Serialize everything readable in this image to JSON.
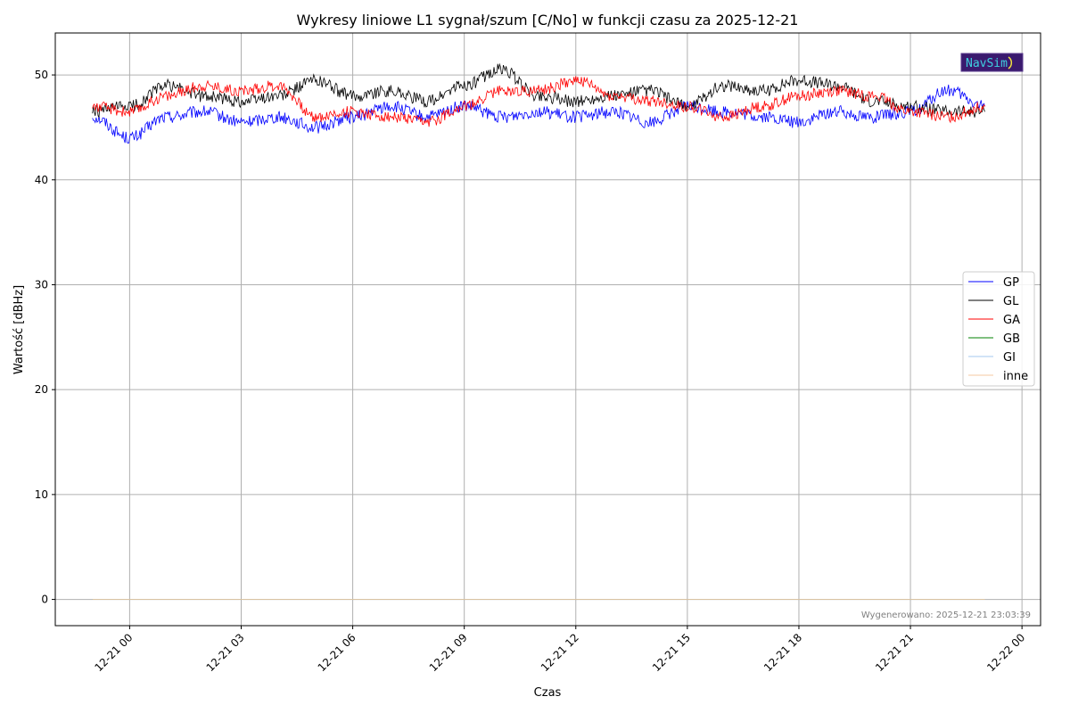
{
  "chart_data": {
    "type": "line",
    "title": "Wykresy liniowe L1 sygnał/szum [C/No] w funkcji czasu za 2025-12-21",
    "xlabel": "Czas",
    "ylabel": "Wartość [dBHz]",
    "x_axis": {
      "kind": "datetime",
      "range": [
        "2025-12-20 22:00",
        "2025-12-22 00:30"
      ],
      "tick_labels": [
        "12-21 00",
        "12-21 03",
        "12-21 06",
        "12-21 09",
        "12-21 12",
        "12-21 15",
        "12-21 18",
        "12-21 21",
        "12-22 00"
      ]
    },
    "ylim": [
      -2.5,
      54
    ],
    "y_ticks": [
      0,
      10,
      20,
      30,
      40,
      50
    ],
    "grid": true,
    "legend_position": "right",
    "series": [
      {
        "name": "GP",
        "color": "#0000ff",
        "x": [
          "2025-12-20 23:00",
          "2025-12-21 00:00",
          "2025-12-21 01:00",
          "2025-12-21 02:00",
          "2025-12-21 03:00",
          "2025-12-21 04:00",
          "2025-12-21 05:00",
          "2025-12-21 06:00",
          "2025-12-21 07:00",
          "2025-12-21 08:00",
          "2025-12-21 09:00",
          "2025-12-21 10:00",
          "2025-12-21 11:00",
          "2025-12-21 12:00",
          "2025-12-21 13:00",
          "2025-12-21 14:00",
          "2025-12-21 15:00",
          "2025-12-21 16:00",
          "2025-12-21 17:00",
          "2025-12-21 18:00",
          "2025-12-21 19:00",
          "2025-12-21 20:00",
          "2025-12-21 21:00",
          "2025-12-21 22:00",
          "2025-12-21 23:00"
        ],
        "values": [
          46.0,
          44.0,
          46.0,
          46.5,
          45.5,
          46.0,
          45.0,
          46.0,
          47.0,
          46.0,
          47.0,
          46.0,
          46.5,
          46.0,
          46.5,
          45.5,
          47.0,
          46.5,
          46.0,
          45.5,
          46.5,
          46.0,
          46.5,
          48.5,
          47.0
        ]
      },
      {
        "name": "GL",
        "color": "#000000",
        "x": [
          "2025-12-20 23:00",
          "2025-12-21 00:00",
          "2025-12-21 01:00",
          "2025-12-21 02:00",
          "2025-12-21 03:00",
          "2025-12-21 04:00",
          "2025-12-21 05:00",
          "2025-12-21 06:00",
          "2025-12-21 07:00",
          "2025-12-21 08:00",
          "2025-12-21 09:00",
          "2025-12-21 10:00",
          "2025-12-21 11:00",
          "2025-12-21 12:00",
          "2025-12-21 13:00",
          "2025-12-21 14:00",
          "2025-12-21 15:00",
          "2025-12-21 16:00",
          "2025-12-21 17:00",
          "2025-12-21 18:00",
          "2025-12-21 19:00",
          "2025-12-21 20:00",
          "2025-12-21 21:00",
          "2025-12-21 22:00",
          "2025-12-21 23:00"
        ],
        "values": [
          46.5,
          47.0,
          49.0,
          48.0,
          47.5,
          48.0,
          49.5,
          48.0,
          48.5,
          47.5,
          49.0,
          50.5,
          48.0,
          47.5,
          48.0,
          48.5,
          47.0,
          49.0,
          48.5,
          49.5,
          49.0,
          47.5,
          47.0,
          46.5,
          46.5
        ]
      },
      {
        "name": "GA",
        "color": "#ff0000",
        "x": [
          "2025-12-20 23:00",
          "2025-12-21 00:00",
          "2025-12-21 01:00",
          "2025-12-21 02:00",
          "2025-12-21 03:00",
          "2025-12-21 04:00",
          "2025-12-21 05:00",
          "2025-12-21 06:00",
          "2025-12-21 07:00",
          "2025-12-21 08:00",
          "2025-12-21 09:00",
          "2025-12-21 10:00",
          "2025-12-21 11:00",
          "2025-12-21 12:00",
          "2025-12-21 13:00",
          "2025-12-21 14:00",
          "2025-12-21 15:00",
          "2025-12-21 16:00",
          "2025-12-21 17:00",
          "2025-12-21 18:00",
          "2025-12-21 19:00",
          "2025-12-21 20:00",
          "2025-12-21 21:00",
          "2025-12-21 22:00",
          "2025-12-21 23:00"
        ],
        "values": [
          47.0,
          46.5,
          48.0,
          49.0,
          48.5,
          49.0,
          46.0,
          46.5,
          46.0,
          45.5,
          47.0,
          48.5,
          48.5,
          49.5,
          48.0,
          47.5,
          47.0,
          46.0,
          47.0,
          48.0,
          48.5,
          48.0,
          46.5,
          46.0,
          47.0
        ]
      },
      {
        "name": "GB",
        "color": "#008000",
        "x": [
          "2025-12-20 23:00",
          "2025-12-21 23:00"
        ],
        "values": [
          0,
          0
        ]
      },
      {
        "name": "GI",
        "color": "#a6c8ef",
        "x": [
          "2025-12-20 23:00",
          "2025-12-21 23:00"
        ],
        "values": [
          0,
          0
        ]
      },
      {
        "name": "inne",
        "color": "#f6c8a0",
        "x": [
          "2025-12-20 23:00",
          "2025-12-21 23:00"
        ],
        "values": [
          0,
          0
        ]
      }
    ],
    "annotation": "Wygenerowano: 2025-12-21 23:03:39",
    "logo_text": "NavSim"
  }
}
